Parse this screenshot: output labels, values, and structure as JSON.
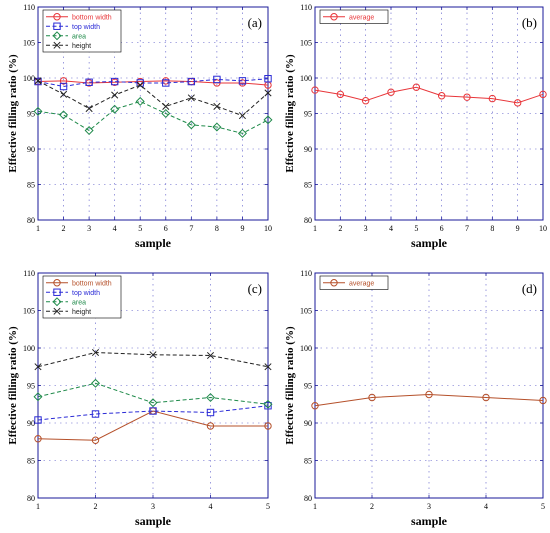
{
  "chart_data": [
    {
      "id": "a",
      "type": "line",
      "panel_label": "(a)",
      "xlabel": "sample",
      "ylabel": "Effective filling ratio (%)",
      "x": [
        1,
        2,
        3,
        4,
        5,
        6,
        7,
        8,
        9,
        10
      ],
      "xlim": [
        1,
        10
      ],
      "ylim": [
        80,
        110
      ],
      "yticks": [
        80,
        85,
        90,
        95,
        100,
        105,
        110
      ],
      "grid": true,
      "legend_position": "top-left",
      "series": [
        {
          "name": "bottom width",
          "color": "#e8363a",
          "marker": "circle",
          "dash": "solid",
          "values": [
            99.5,
            99.6,
            99.3,
            99.4,
            99.5,
            99.6,
            99.5,
            99.3,
            99.3,
            99.0
          ]
        },
        {
          "name": "top width",
          "color": "#2b2bd6",
          "marker": "square",
          "dash": "dash",
          "values": [
            99.5,
            98.8,
            99.4,
            99.5,
            99.3,
            99.3,
            99.5,
            99.8,
            99.6,
            99.9
          ]
        },
        {
          "name": "area",
          "color": "#1f8a4a",
          "marker": "diamond",
          "dash": "dash",
          "values": [
            95.3,
            94.8,
            92.6,
            95.6,
            96.7,
            95.0,
            93.4,
            93.1,
            92.2,
            94.1
          ]
        },
        {
          "name": "height",
          "color": "#222222",
          "marker": "x",
          "dash": "dash",
          "values": [
            99.6,
            97.7,
            95.7,
            97.6,
            99.0,
            96.0,
            97.2,
            96.0,
            94.7,
            97.9
          ]
        }
      ]
    },
    {
      "id": "b",
      "type": "line",
      "panel_label": "(b)",
      "xlabel": "sample",
      "ylabel": "Effective filling ratio (%)",
      "x": [
        1,
        2,
        3,
        4,
        5,
        6,
        7,
        8,
        9,
        10
      ],
      "xlim": [
        1,
        10
      ],
      "ylim": [
        80,
        110
      ],
      "yticks": [
        80,
        85,
        90,
        95,
        100,
        105,
        110
      ],
      "grid": true,
      "legend_position": "top-left",
      "series": [
        {
          "name": "average",
          "color": "#e8363a",
          "marker": "circle",
          "dash": "solid",
          "values": [
            98.3,
            97.7,
            96.8,
            98.0,
            98.7,
            97.5,
            97.3,
            97.1,
            96.5,
            97.7
          ]
        }
      ]
    },
    {
      "id": "c",
      "type": "line",
      "panel_label": "(c)",
      "xlabel": "sample",
      "ylabel": "Effective filling ratio (%)",
      "x": [
        1,
        2,
        3,
        4,
        5
      ],
      "xlim": [
        1,
        5
      ],
      "ylim": [
        80,
        110
      ],
      "yticks": [
        80,
        85,
        90,
        95,
        100,
        105,
        110
      ],
      "grid": true,
      "legend_position": "top-left",
      "series": [
        {
          "name": "bottom width",
          "color": "#b5502a",
          "marker": "circle",
          "dash": "solid",
          "values": [
            87.9,
            87.7,
            91.6,
            89.6,
            89.6
          ]
        },
        {
          "name": "top width",
          "color": "#2b2bd6",
          "marker": "square",
          "dash": "dash",
          "values": [
            90.4,
            91.2,
            91.6,
            91.4,
            92.3
          ]
        },
        {
          "name": "area",
          "color": "#1f8a4a",
          "marker": "diamond",
          "dash": "dash",
          "values": [
            93.5,
            95.3,
            92.7,
            93.4,
            92.5
          ]
        },
        {
          "name": "height",
          "color": "#222222",
          "marker": "x",
          "dash": "dash",
          "values": [
            97.5,
            99.4,
            99.1,
            99.0,
            97.5
          ]
        }
      ]
    },
    {
      "id": "d",
      "type": "line",
      "panel_label": "(d)",
      "xlabel": "sample",
      "ylabel": "Effective filling ratio (%)",
      "x": [
        1,
        2,
        3,
        4,
        5
      ],
      "xlim": [
        1,
        5
      ],
      "ylim": [
        80,
        110
      ],
      "yticks": [
        80,
        85,
        90,
        95,
        100,
        105,
        110
      ],
      "grid": true,
      "legend_position": "top-left",
      "series": [
        {
          "name": "average",
          "color": "#b5502a",
          "marker": "circle",
          "dash": "solid",
          "values": [
            92.3,
            93.4,
            93.8,
            93.4,
            93.0
          ]
        }
      ]
    }
  ]
}
